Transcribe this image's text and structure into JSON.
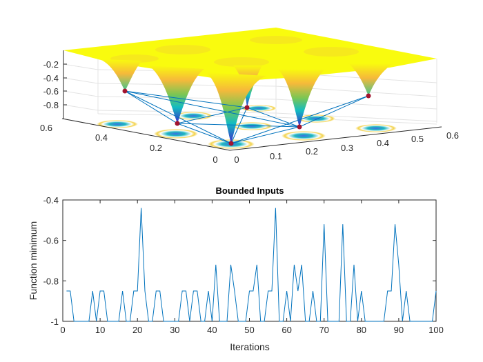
{
  "chart_data": [
    {
      "type": "surface",
      "title": "",
      "xlabel": "",
      "ylabel": "",
      "zlabel": "",
      "x_ticks": [
        "0",
        "0.1",
        "0.2",
        "0.3",
        "0.4",
        "0.5",
        "0.6"
      ],
      "y_ticks": [
        "0",
        "0.2",
        "0.4",
        "0.6"
      ],
      "z_ticks": [
        "-0.2",
        "-0.4",
        "-0.6",
        "-0.8"
      ],
      "xlim": [
        0,
        0.6
      ],
      "ylim": [
        0,
        0.6
      ],
      "colormap": "parula",
      "marker_color": "#a2142f",
      "line_color": "#0072bd",
      "grid": true
    },
    {
      "type": "line",
      "title": "Bounded Inputs",
      "xlabel": "Iterations",
      "ylabel": "Function minimum",
      "xlim": [
        0,
        100
      ],
      "ylim": [
        -1,
        -0.4
      ],
      "x_ticks": [
        "0",
        "10",
        "20",
        "30",
        "40",
        "50",
        "60",
        "70",
        "80",
        "90",
        "100"
      ],
      "y_ticks": [
        "-0.4",
        "-0.6",
        "-0.8",
        "-1"
      ],
      "color": "#0072bd",
      "grid": false,
      "x": [
        1,
        2,
        3,
        4,
        5,
        6,
        7,
        8,
        9,
        10,
        11,
        12,
        13,
        14,
        15,
        16,
        17,
        18,
        19,
        20,
        21,
        22,
        23,
        24,
        25,
        26,
        27,
        28,
        29,
        30,
        31,
        32,
        33,
        34,
        35,
        36,
        37,
        38,
        39,
        40,
        41,
        42,
        43,
        44,
        45,
        46,
        47,
        48,
        49,
        50,
        51,
        52,
        53,
        54,
        55,
        56,
        57,
        58,
        59,
        60,
        61,
        62,
        63,
        64,
        65,
        66,
        67,
        68,
        69,
        70,
        71,
        72,
        73,
        74,
        75,
        76,
        77,
        78,
        79,
        80,
        81,
        82,
        83,
        84,
        85,
        86,
        87,
        88,
        89,
        90,
        91,
        92,
        93,
        94,
        95,
        96,
        97,
        98,
        99,
        100
      ],
      "y": [
        -0.85,
        -0.85,
        -1,
        -1,
        -1,
        -1,
        -1,
        -0.85,
        -1,
        -0.85,
        -0.85,
        -1,
        -1,
        -1,
        -1,
        -0.85,
        -1,
        -1,
        -0.85,
        -0.85,
        -0.44,
        -0.85,
        -1,
        -1,
        -0.85,
        -0.85,
        -1,
        -1,
        -1,
        -1,
        -1,
        -0.85,
        -0.85,
        -1,
        -0.85,
        -0.85,
        -1,
        -1,
        -0.85,
        -1,
        -0.72,
        -1,
        -1,
        -1,
        -0.72,
        -0.85,
        -1,
        -1,
        -1,
        -0.85,
        -0.85,
        -0.72,
        -1,
        -1,
        -0.85,
        -0.85,
        -0.44,
        -1,
        -1,
        -0.85,
        -1,
        -0.72,
        -0.85,
        -0.72,
        -1,
        -1,
        -0.85,
        -1,
        -1,
        -0.52,
        -1,
        -1,
        -1,
        -1,
        -0.52,
        -1,
        -1,
        -0.72,
        -1,
        -0.85,
        -1,
        -1,
        -1,
        -1,
        -1,
        -1,
        -0.85,
        -0.85,
        -0.52,
        -0.72,
        -1,
        -0.85,
        -1,
        -1,
        -1,
        -1,
        -1,
        -1,
        -1,
        -0.85
      ]
    }
  ]
}
